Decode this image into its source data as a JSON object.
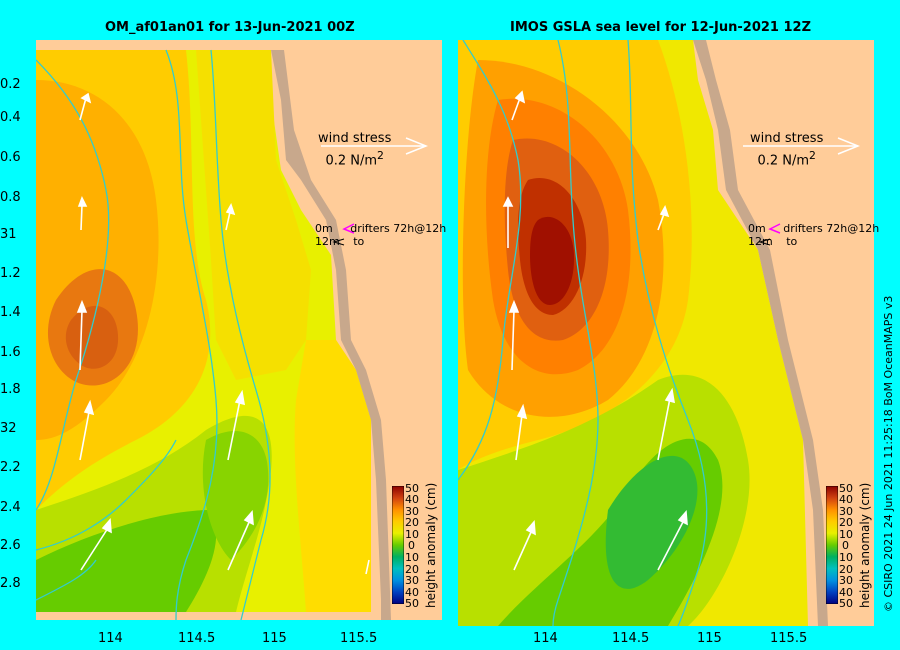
{
  "left_panel": {
    "title": "OM_af01an01 for 13-Jun-2021 00Z",
    "y_ticks": [
      "0.2",
      "0.4",
      "0.6",
      "0.8",
      "31",
      "1.2",
      "1.4",
      "1.6",
      "1.8",
      "32",
      "2.2",
      "2.4",
      "2.6",
      "2.8"
    ],
    "x_ticks": [
      "114",
      "114.5",
      "115",
      "115.5"
    ],
    "wind_label_1": "wind stress",
    "wind_label_2": "0.2 N/m",
    "wind_sup": "2",
    "drifters_line1": "0m",
    "drifters_text": "drifters 72h@12h",
    "drifters_line2": "12m",
    "drifters_to": "to"
  },
  "right_panel": {
    "title": "IMOS GSLA sea level  for 12-Jun-2021 12Z",
    "x_ticks": [
      "114",
      "114.5",
      "115",
      "115.5"
    ],
    "wind_label_1": "wind stress",
    "wind_label_2": "0.2 N/m",
    "wind_sup": "2",
    "drifters_line1": "0m",
    "drifters_text": "drifters 72h@12h",
    "drifters_line2": "12m",
    "drifters_to": "to"
  },
  "colorbar": {
    "title": "height anomaly (cm)",
    "labels": [
      "50",
      "40",
      "30",
      "20",
      "10",
      "0",
      "10",
      "20",
      "30",
      "40",
      "50"
    ]
  },
  "credit": "© CSIRO 2021   24 Jun 2021 11:25:18 BoM OceanMAPS v3",
  "colors": {
    "background": "#00ffff",
    "land": "#c8a88c",
    "land_light": "#ffcc99",
    "contour_line": "#33cccc"
  }
}
